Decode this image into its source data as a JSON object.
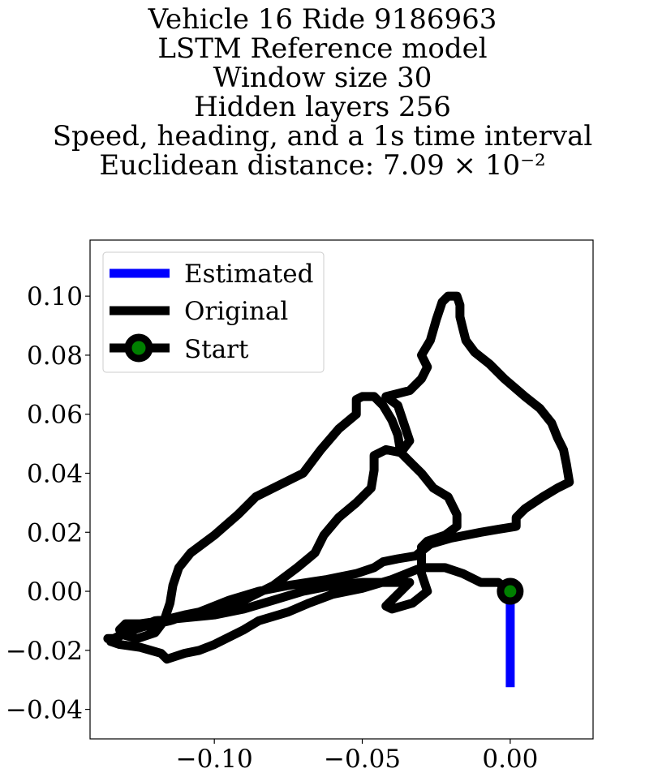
{
  "chart_data": {
    "type": "line",
    "title_lines": [
      "Vehicle 16 Ride 9186963",
      "LSTM Reference model",
      "Window size 30",
      "Hidden layers 256",
      "Speed, heading, and a 1s time interval",
      "Euclidean distance: 7.09 × 10⁻²"
    ],
    "xlabel": "",
    "ylabel": "",
    "xlim": [
      -0.142,
      0.028
    ],
    "ylim": [
      -0.05,
      0.119
    ],
    "x_ticks": [
      -0.1,
      -0.05,
      0.0
    ],
    "x_tick_labels": [
      "−0.10",
      "−0.05",
      "0.00"
    ],
    "y_ticks": [
      -0.04,
      -0.02,
      0.0,
      0.02,
      0.04,
      0.06,
      0.08,
      0.1
    ],
    "y_tick_labels": [
      "−0.04",
      "−0.02",
      "0.00",
      "0.02",
      "0.04",
      "0.06",
      "0.08",
      "0.10"
    ],
    "grid": false,
    "legend_position": "upper-left",
    "legend": [
      {
        "label": "Estimated",
        "color": "#0000ff"
      },
      {
        "label": "Original",
        "color": "#000000"
      },
      {
        "label": "Start",
        "color": "#000000",
        "marker_color": "#008000"
      }
    ],
    "series": [
      {
        "name": "Original",
        "color": "#000000",
        "points": [
          [
            0.0,
            0.0
          ],
          [
            -0.004,
            0.003
          ],
          [
            -0.01,
            0.003
          ],
          [
            -0.016,
            0.006
          ],
          [
            -0.022,
            0.008
          ],
          [
            -0.03,
            0.008
          ],
          [
            -0.035,
            0.006
          ],
          [
            -0.04,
            0.004
          ],
          [
            -0.05,
            0.001
          ],
          [
            -0.06,
            -0.001
          ],
          [
            -0.068,
            -0.004
          ],
          [
            -0.075,
            -0.007
          ],
          [
            -0.085,
            -0.01
          ],
          [
            -0.09,
            -0.013
          ],
          [
            -0.1,
            -0.018
          ],
          [
            -0.105,
            -0.02
          ],
          [
            -0.11,
            -0.021
          ],
          [
            -0.116,
            -0.023
          ],
          [
            -0.118,
            -0.021
          ],
          [
            -0.125,
            -0.019
          ],
          [
            -0.132,
            -0.018
          ],
          [
            -0.135,
            -0.017
          ],
          [
            -0.13,
            -0.014
          ],
          [
            -0.125,
            -0.012
          ],
          [
            -0.12,
            -0.01
          ],
          [
            -0.11,
            -0.009
          ],
          [
            -0.1,
            -0.008
          ],
          [
            -0.09,
            -0.006
          ],
          [
            -0.08,
            -0.003
          ],
          [
            -0.07,
            0.0
          ],
          [
            -0.06,
            0.002
          ],
          [
            -0.05,
            0.003
          ],
          [
            -0.04,
            0.003
          ],
          [
            -0.034,
            0.003
          ],
          [
            -0.038,
            -0.001
          ],
          [
            -0.042,
            -0.005
          ],
          [
            -0.04,
            -0.006
          ],
          [
            -0.033,
            -0.004
          ],
          [
            -0.028,
            0.0
          ],
          [
            -0.03,
            0.006
          ],
          [
            -0.03,
            0.015
          ],
          [
            -0.028,
            0.017
          ],
          [
            -0.022,
            0.019
          ],
          [
            -0.018,
            0.022
          ],
          [
            -0.018,
            0.026
          ],
          [
            -0.021,
            0.032
          ],
          [
            -0.026,
            0.035
          ],
          [
            -0.03,
            0.04
          ],
          [
            -0.033,
            0.043
          ],
          [
            -0.037,
            0.047
          ],
          [
            -0.038,
            0.053
          ],
          [
            -0.04,
            0.058
          ],
          [
            -0.043,
            0.063
          ],
          [
            -0.046,
            0.066
          ],
          [
            -0.05,
            0.066
          ],
          [
            -0.052,
            0.065
          ],
          [
            -0.052,
            0.06
          ],
          [
            -0.058,
            0.055
          ],
          [
            -0.064,
            0.048
          ],
          [
            -0.07,
            0.04
          ],
          [
            -0.078,
            0.036
          ],
          [
            -0.086,
            0.032
          ],
          [
            -0.092,
            0.026
          ],
          [
            -0.1,
            0.019
          ],
          [
            -0.108,
            0.013
          ],
          [
            -0.112,
            0.008
          ],
          [
            -0.114,
            0.002
          ],
          [
            -0.115,
            -0.004
          ],
          [
            -0.117,
            -0.01
          ],
          [
            -0.12,
            -0.014
          ],
          [
            -0.126,
            -0.016
          ],
          [
            -0.13,
            -0.015
          ],
          [
            -0.132,
            -0.013
          ],
          [
            -0.13,
            -0.011
          ],
          [
            -0.125,
            -0.011
          ],
          [
            -0.118,
            -0.01
          ],
          [
            -0.11,
            -0.008
          ],
          [
            -0.1,
            -0.006
          ],
          [
            -0.09,
            -0.003
          ],
          [
            -0.08,
            0.002
          ],
          [
            -0.072,
            0.008
          ],
          [
            -0.066,
            0.013
          ],
          [
            -0.063,
            0.019
          ],
          [
            -0.058,
            0.025
          ],
          [
            -0.052,
            0.03
          ],
          [
            -0.047,
            0.035
          ],
          [
            -0.046,
            0.041
          ],
          [
            -0.046,
            0.046
          ],
          [
            -0.042,
            0.048
          ],
          [
            -0.037,
            0.047
          ],
          [
            -0.034,
            0.051
          ],
          [
            -0.036,
            0.057
          ],
          [
            -0.038,
            0.063
          ],
          [
            -0.042,
            0.066
          ],
          [
            -0.034,
            0.068
          ],
          [
            -0.03,
            0.072
          ],
          [
            -0.028,
            0.076
          ],
          [
            -0.03,
            0.08
          ],
          [
            -0.027,
            0.085
          ],
          [
            -0.025,
            0.092
          ],
          [
            -0.023,
            0.098
          ],
          [
            -0.021,
            0.1
          ],
          [
            -0.018,
            0.1
          ],
          [
            -0.017,
            0.097
          ],
          [
            -0.017,
            0.093
          ],
          [
            -0.016,
            0.089
          ],
          [
            -0.015,
            0.085
          ],
          [
            -0.012,
            0.081
          ],
          [
            -0.007,
            0.077
          ],
          [
            -0.002,
            0.072
          ],
          [
            0.005,
            0.066
          ],
          [
            0.01,
            0.062
          ],
          [
            0.014,
            0.057
          ],
          [
            0.016,
            0.052
          ],
          [
            0.018,
            0.048
          ],
          [
            0.019,
            0.043
          ],
          [
            0.02,
            0.037
          ],
          [
            0.016,
            0.035
          ],
          [
            0.011,
            0.032
          ],
          [
            0.005,
            0.028
          ],
          [
            0.002,
            0.025
          ],
          [
            0.002,
            0.022
          ],
          [
            -0.004,
            0.021
          ],
          [
            -0.01,
            0.02
          ],
          [
            -0.02,
            0.018
          ],
          [
            -0.027,
            0.016
          ],
          [
            -0.032,
            0.012
          ],
          [
            -0.038,
            0.011
          ],
          [
            -0.043,
            0.01
          ],
          [
            -0.046,
            0.008
          ],
          [
            -0.052,
            0.006
          ],
          [
            -0.062,
            0.004
          ],
          [
            -0.075,
            0.002
          ],
          [
            -0.085,
            0.0
          ],
          [
            -0.095,
            -0.003
          ],
          [
            -0.105,
            -0.007
          ],
          [
            -0.115,
            -0.01
          ],
          [
            -0.124,
            -0.012
          ],
          [
            -0.13,
            -0.014
          ],
          [
            -0.134,
            -0.016
          ],
          [
            -0.136,
            -0.016
          ]
        ]
      },
      {
        "name": "Estimated",
        "color": "#0000ff",
        "points": [
          [
            0.0,
            0.0
          ],
          [
            0.0,
            -0.0325
          ]
        ]
      }
    ],
    "start_point": [
      0.0,
      0.0
    ]
  }
}
